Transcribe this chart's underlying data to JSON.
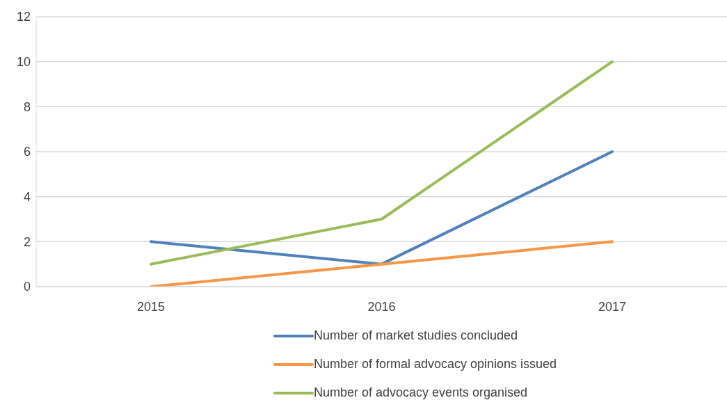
{
  "chart_data": {
    "type": "line",
    "categories": [
      "2015",
      "2016",
      "2017"
    ],
    "series": [
      {
        "name": "Number of market studies concluded",
        "color": "#4f81bd",
        "values": [
          2,
          1,
          6
        ]
      },
      {
        "name": "Number of formal advocacy opinions issued",
        "color": "#f79646",
        "values": [
          0,
          1,
          2
        ]
      },
      {
        "name": "Number of advocacy events organised",
        "color": "#9bbb59",
        "values": [
          1,
          3,
          10
        ]
      }
    ],
    "ylim": [
      0,
      12
    ],
    "yticks": [
      0,
      2,
      4,
      6,
      8,
      10,
      12
    ],
    "grid": "y",
    "legend": "bottom",
    "marker": "none",
    "line_style": "solid"
  }
}
